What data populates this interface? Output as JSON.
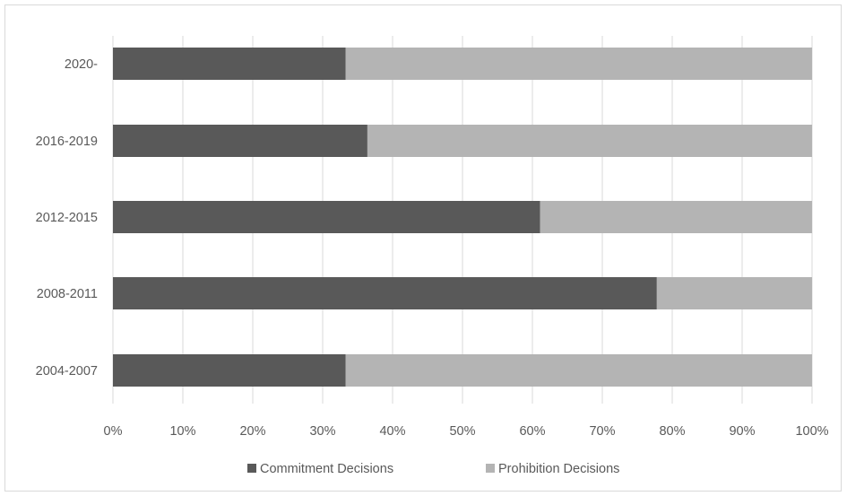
{
  "chart_data": {
    "type": "bar",
    "orientation": "horizontal",
    "stacked": "percent",
    "categories": [
      "2004-2007",
      "2008-2011",
      "2012-2015",
      "2016-2019",
      "2020-"
    ],
    "series": [
      {
        "name": "Commitment Decisions",
        "values": [
          33.3,
          77.8,
          61.1,
          36.4,
          33.3
        ],
        "color": "#595959"
      },
      {
        "name": "Prohibition Decisions",
        "values": [
          66.7,
          22.2,
          38.9,
          63.6,
          66.7
        ],
        "color": "#b4b4b4"
      }
    ],
    "xlim": [
      0,
      100
    ],
    "xticks": [
      "0%",
      "10%",
      "20%",
      "30%",
      "40%",
      "50%",
      "60%",
      "70%",
      "80%",
      "90%",
      "100%"
    ],
    "grid": "vertical",
    "legend_position": "bottom"
  }
}
